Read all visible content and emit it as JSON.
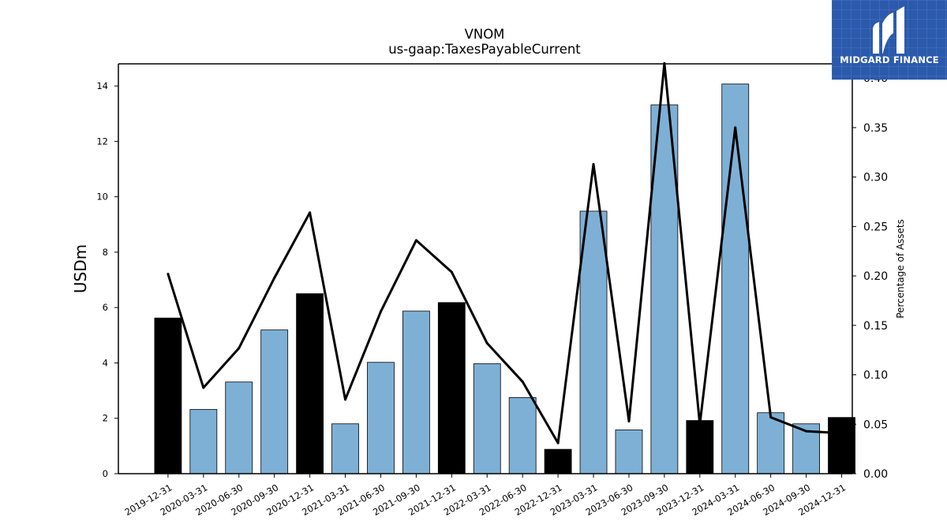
{
  "chart_data": {
    "type": "bar",
    "title": "VNOM",
    "subtitle": "us-gaap:TaxesPayableCurrent",
    "ylabel": "USDm",
    "y2label": "Percentage of Assets",
    "ylim": [
      0,
      14.8
    ],
    "y2lim": [
      0,
      0.4145
    ],
    "yticks": [
      0,
      2,
      4,
      6,
      8,
      10,
      12,
      14
    ],
    "y2ticks": [
      "0.00",
      "0.05",
      "0.10",
      "0.15",
      "0.20",
      "0.25",
      "0.30",
      "0.35",
      "0.40"
    ],
    "categories": [
      "2019-12-31",
      "2020-03-31",
      "2020-06-30",
      "2020-09-30",
      "2020-12-31",
      "2021-03-31",
      "2021-06-30",
      "2021-09-30",
      "2021-12-31",
      "2022-03-31",
      "2022-06-30",
      "2022-12-31",
      "2023-03-31",
      "2023-06-30",
      "2023-09-30",
      "2023-12-31",
      "2024-03-31",
      "2024-06-30",
      "2024-09-30",
      "2024-12-31"
    ],
    "series": [
      {
        "type": "bar",
        "axis": "left",
        "values": [
          5.62,
          2.32,
          3.31,
          5.19,
          6.5,
          1.8,
          4.02,
          5.87,
          6.18,
          3.97,
          2.75,
          0.88,
          9.48,
          1.58,
          13.32,
          1.92,
          14.07,
          2.2,
          1.8,
          2.03
        ],
        "fiscal_year_end": [
          true,
          false,
          false,
          false,
          true,
          false,
          false,
          false,
          true,
          false,
          false,
          true,
          false,
          false,
          false,
          true,
          false,
          false,
          false,
          true
        ]
      },
      {
        "type": "line",
        "axis": "right",
        "values": [
          0.202,
          0.087,
          0.127,
          0.198,
          0.264,
          0.075,
          0.164,
          0.236,
          0.204,
          0.132,
          0.093,
          0.031,
          0.313,
          0.053,
          0.415,
          0.05,
          0.35,
          0.057,
          0.043,
          0.041
        ]
      }
    ],
    "colors": {
      "bar_default": "#7eb0d5",
      "bar_highlight": "#000000",
      "line": "#000000",
      "bar_edge": "#000000"
    },
    "grid": false
  },
  "logo": {
    "text": "MIDGARD FINANCE"
  }
}
